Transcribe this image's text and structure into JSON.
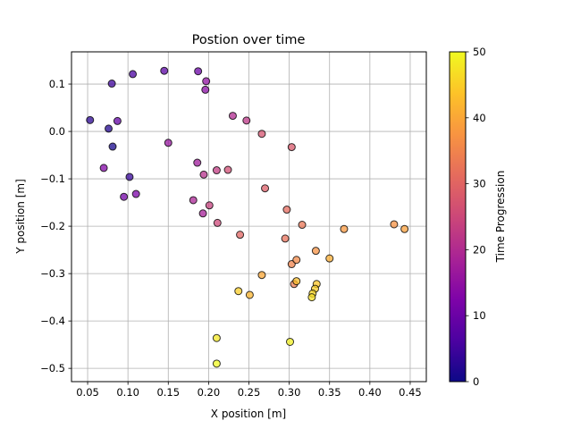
{
  "chart_data": {
    "type": "scatter",
    "title": "Postion over time",
    "xlabel": "X position [m]",
    "ylabel": "Y position [m]",
    "xlim": [
      0.03,
      0.47
    ],
    "ylim": [
      -0.528,
      0.168
    ],
    "xticks": [
      0.05,
      0.1,
      0.15,
      0.2,
      0.25,
      0.3,
      0.35,
      0.4,
      0.45
    ],
    "xtick_labels": [
      "0.05",
      "0.10",
      "0.15",
      "0.20",
      "0.25",
      "0.30",
      "0.35",
      "0.40",
      "0.45"
    ],
    "yticks": [
      0.1,
      0.0,
      -0.1,
      -0.2,
      -0.3,
      -0.4,
      -0.5
    ],
    "ytick_labels": [
      "0.1",
      "0.0",
      "−0.1",
      "−0.2",
      "−0.3",
      "−0.4",
      "−0.5"
    ],
    "grid": true,
    "colormap": "plasma",
    "colorbar": {
      "label": "Time Progression",
      "range": [
        0,
        50
      ],
      "ticks": [
        0,
        10,
        20,
        30,
        40,
        50
      ],
      "tick_labels": [
        "0",
        "10",
        "20",
        "30",
        "40",
        "50"
      ]
    },
    "points": [
      {
        "x": 0.081,
        "y": -0.032,
        "t": 1
      },
      {
        "x": 0.076,
        "y": 0.006,
        "t": 2
      },
      {
        "x": 0.053,
        "y": 0.024,
        "t": 3
      },
      {
        "x": 0.102,
        "y": -0.096,
        "t": 4
      },
      {
        "x": 0.08,
        "y": 0.101,
        "t": 5
      },
      {
        "x": 0.106,
        "y": 0.121,
        "t": 6
      },
      {
        "x": 0.145,
        "y": 0.128,
        "t": 8
      },
      {
        "x": 0.087,
        "y": 0.022,
        "t": 9
      },
      {
        "x": 0.187,
        "y": 0.127,
        "t": 10
      },
      {
        "x": 0.095,
        "y": -0.138,
        "t": 11
      },
      {
        "x": 0.11,
        "y": -0.132,
        "t": 12
      },
      {
        "x": 0.07,
        "y": -0.077,
        "t": 13
      },
      {
        "x": 0.196,
        "y": 0.088,
        "t": 14
      },
      {
        "x": 0.197,
        "y": 0.106,
        "t": 15
      },
      {
        "x": 0.15,
        "y": -0.024,
        "t": 16
      },
      {
        "x": 0.186,
        "y": -0.066,
        "t": 17
      },
      {
        "x": 0.193,
        "y": -0.173,
        "t": 18
      },
      {
        "x": 0.181,
        "y": -0.145,
        "t": 19
      },
      {
        "x": 0.23,
        "y": 0.033,
        "t": 20
      },
      {
        "x": 0.194,
        "y": -0.091,
        "t": 21
      },
      {
        "x": 0.247,
        "y": 0.023,
        "t": 22
      },
      {
        "x": 0.21,
        "y": -0.082,
        "t": 23
      },
      {
        "x": 0.201,
        "y": -0.156,
        "t": 24
      },
      {
        "x": 0.211,
        "y": -0.193,
        "t": 25
      },
      {
        "x": 0.224,
        "y": -0.081,
        "t": 26
      },
      {
        "x": 0.266,
        "y": -0.005,
        "t": 27
      },
      {
        "x": 0.303,
        "y": -0.033,
        "t": 28
      },
      {
        "x": 0.27,
        "y": -0.12,
        "t": 29
      },
      {
        "x": 0.239,
        "y": -0.218,
        "t": 30
      },
      {
        "x": 0.297,
        "y": -0.165,
        "t": 31
      },
      {
        "x": 0.295,
        "y": -0.226,
        "t": 32
      },
      {
        "x": 0.316,
        "y": -0.197,
        "t": 33
      },
      {
        "x": 0.306,
        "y": -0.322,
        "t": 34
      },
      {
        "x": 0.303,
        "y": -0.28,
        "t": 35
      },
      {
        "x": 0.309,
        "y": -0.271,
        "t": 36
      },
      {
        "x": 0.333,
        "y": -0.252,
        "t": 37
      },
      {
        "x": 0.43,
        "y": -0.196,
        "t": 37
      },
      {
        "x": 0.368,
        "y": -0.206,
        "t": 38
      },
      {
        "x": 0.443,
        "y": -0.206,
        "t": 39
      },
      {
        "x": 0.266,
        "y": -0.303,
        "t": 40
      },
      {
        "x": 0.35,
        "y": -0.268,
        "t": 41
      },
      {
        "x": 0.251,
        "y": -0.345,
        "t": 42
      },
      {
        "x": 0.309,
        "y": -0.316,
        "t": 43
      },
      {
        "x": 0.334,
        "y": -0.322,
        "t": 44
      },
      {
        "x": 0.332,
        "y": -0.332,
        "t": 45
      },
      {
        "x": 0.237,
        "y": -0.337,
        "t": 45
      },
      {
        "x": 0.329,
        "y": -0.342,
        "t": 46
      },
      {
        "x": 0.328,
        "y": -0.35,
        "t": 47
      },
      {
        "x": 0.21,
        "y": -0.436,
        "t": 48
      },
      {
        "x": 0.301,
        "y": -0.444,
        "t": 49
      },
      {
        "x": 0.21,
        "y": -0.49,
        "t": 50
      }
    ]
  }
}
